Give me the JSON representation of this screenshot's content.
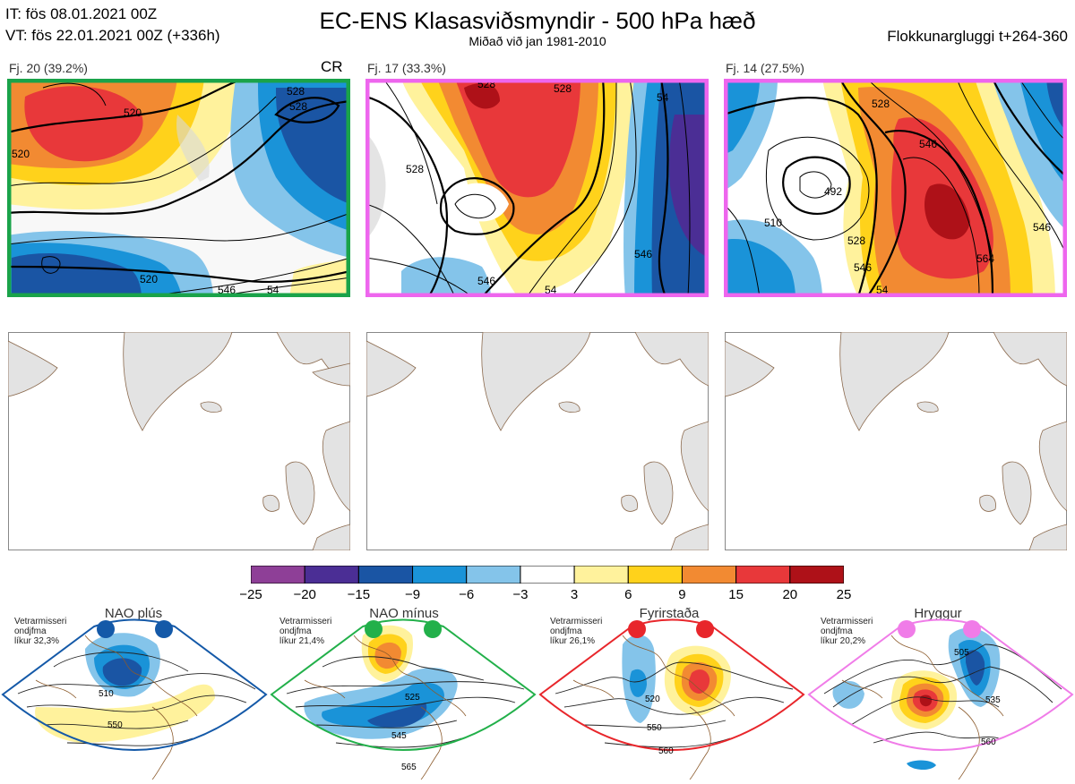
{
  "header": {
    "it_line": "IT: fös 08.01.2021 00Z",
    "vt_line": "VT: fös 22.01.2021 00Z  (+336h)",
    "title": "EC-ENS Klasasviðsmyndir - 500 hPa hæð",
    "subtitle": "Miðað við jan 1981-2010",
    "window": "Flokkunargluggi t+264-360"
  },
  "clusters": [
    {
      "label": "Fj. 20 (39.2%)",
      "tag": "CR",
      "border_color": "#1aa34a",
      "contour_labels": [
        "520",
        "520",
        "528",
        "520",
        "546",
        "54",
        "528"
      ]
    },
    {
      "label": "Fj. 17 (33.3%)",
      "tag": "",
      "border_color": "#ee66ee",
      "contour_labels": [
        "528",
        "528",
        "546",
        "528",
        "546",
        "54",
        "54"
      ]
    },
    {
      "label": "Fj. 14 (27.5%)",
      "tag": "",
      "border_color": "#ee66ee",
      "contour_labels": [
        "528",
        "546",
        "492",
        "510",
        "528",
        "546",
        "564",
        "546",
        "54"
      ]
    }
  ],
  "colorbar": {
    "ticks": [
      "−25",
      "−20",
      "−15",
      "−9",
      "−6",
      "−3",
      "3",
      "6",
      "9",
      "15",
      "20",
      "25"
    ],
    "colors": [
      "#8e3f97",
      "#4b2e95",
      "#1a55a4",
      "#1a93d8",
      "#84c4ea",
      "#ffffff",
      "#fff29c",
      "#ffd21b",
      "#f28a32",
      "#e8383a",
      "#ae1118"
    ]
  },
  "regimes": [
    {
      "name": "NAO plús",
      "info": [
        "Vetrarmisseri",
        "ondjfma",
        "líkur 32,3%"
      ],
      "color": "#1459a8",
      "labels": [
        "510",
        "550"
      ]
    },
    {
      "name": "NAO mínus",
      "info": [
        "Vetrarmisseri",
        "ondjfma",
        "líkur 21,4%"
      ],
      "color": "#22b04a",
      "labels": [
        "525",
        "545",
        "565"
      ]
    },
    {
      "name": "Fyrirstaða",
      "info": [
        "Vetrarmisseri",
        "ondjfma",
        "líkur 26,1%"
      ],
      "color": "#e8262b",
      "labels": [
        "520",
        "550",
        "560"
      ]
    },
    {
      "name": "Hryggur",
      "info": [
        "Vetrarmisseri",
        "ondjfma",
        "líkur 20,2%"
      ],
      "color": "#f07ce8",
      "labels": [
        "505",
        "535",
        "560"
      ]
    }
  ]
}
